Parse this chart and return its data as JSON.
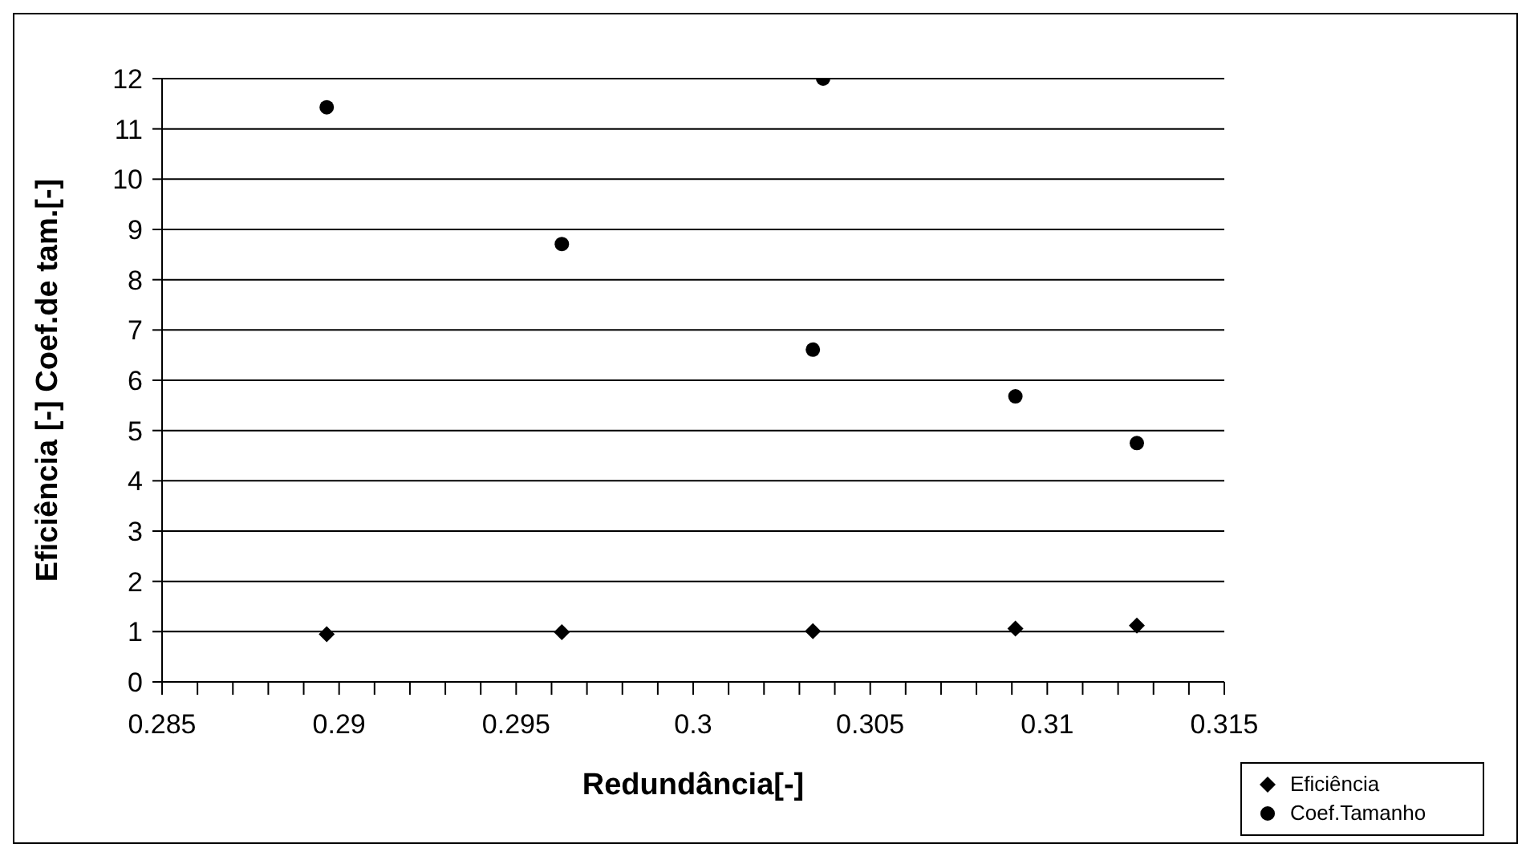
{
  "chart_data": {
    "type": "scatter",
    "xlabel": "Redundância[-]",
    "ylabel": "Eficiência [-] Coef.de tam.[-]",
    "xlim": [
      0.285,
      0.315
    ],
    "xticks": [
      0.285,
      {
        "value": 0.286,
        "label": null
      },
      {
        "value": 0.287,
        "label": null
      },
      {
        "value": 0.288,
        "label": null
      },
      {
        "value": 0.289,
        "label": null
      },
      0.29,
      {
        "value": 0.291,
        "label": null
      },
      {
        "value": 0.292,
        "label": null
      },
      {
        "value": 0.293,
        "label": null
      },
      {
        "value": 0.294,
        "label": null
      },
      0.295,
      {
        "value": 0.296,
        "label": null
      },
      {
        "value": 0.297,
        "label": null
      },
      {
        "value": 0.298,
        "label": null
      },
      {
        "value": 0.299,
        "label": null
      },
      0.3,
      {
        "value": 0.301,
        "label": null
      },
      {
        "value": 0.302,
        "label": null
      },
      {
        "value": 0.303,
        "label": null
      },
      {
        "value": 0.304,
        "label": null
      },
      0.305,
      {
        "value": 0.306,
        "label": null
      },
      {
        "value": 0.307,
        "label": null
      },
      {
        "value": 0.308,
        "label": null
      },
      {
        "value": 0.309,
        "label": null
      },
      0.31,
      {
        "value": 0.311,
        "label": null
      },
      {
        "value": 0.312,
        "label": null
      },
      {
        "value": 0.313,
        "label": null
      },
      {
        "value": 0.314,
        "label": null
      },
      0.315
    ],
    "ylim": [
      0,
      12
    ],
    "yticks": [
      0,
      1,
      2,
      3,
      4,
      5,
      6,
      7,
      8,
      9,
      10,
      11,
      12
    ],
    "grid": "y",
    "legend": "bottom right",
    "series": [
      {
        "name": "Eficiência",
        "color": "#000000",
        "marker": "diamond",
        "x": [
          0.28965,
          0.29629,
          0.30338,
          0.3091,
          0.31253
        ],
        "values": [
          0.95,
          0.99,
          1.01,
          1.06,
          1.12
        ]
      },
      {
        "name": "Coef.Tamanho",
        "color": "#000000",
        "marker": "circle",
        "x": [
          0.28965,
          0.29629,
          0.30338,
          0.30367,
          0.3091,
          0.31253
        ],
        "values": [
          11.43,
          8.71,
          6.61,
          12,
          5.68,
          4.75
        ]
      }
    ]
  }
}
